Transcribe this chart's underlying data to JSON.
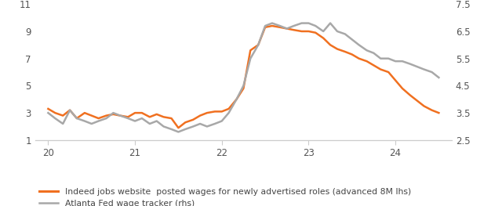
{
  "lhs_ylim": [
    1,
    11
  ],
  "lhs_yticks": [
    1,
    3,
    5,
    7,
    9,
    11
  ],
  "rhs_ylim": [
    2.5,
    7.5
  ],
  "rhs_yticks": [
    2.5,
    3.5,
    4.5,
    5.5,
    6.5,
    7.5
  ],
  "xticks": [
    20,
    21,
    22,
    23,
    24
  ],
  "xlim": [
    19.85,
    24.65
  ],
  "orange_color": "#F07020",
  "gray_color": "#A8A8A8",
  "background_color": "#FFFFFF",
  "legend_orange": "Indeed jobs website  posted wages for newly advertised roles (advanced 8M lhs)",
  "legend_gray": "Atlanta Fed wage tracker (rhs)",
  "indeed_x": [
    20.0,
    20.08,
    20.17,
    20.25,
    20.33,
    20.42,
    20.5,
    20.58,
    20.67,
    20.75,
    20.83,
    20.92,
    21.0,
    21.08,
    21.17,
    21.25,
    21.33,
    21.42,
    21.5,
    21.58,
    21.67,
    21.75,
    21.83,
    21.92,
    22.0,
    22.08,
    22.17,
    22.25,
    22.33,
    22.42,
    22.5,
    22.58,
    22.67,
    22.75,
    22.83,
    22.92,
    23.0,
    23.08,
    23.17,
    23.25,
    23.33,
    23.42,
    23.5,
    23.58,
    23.67,
    23.75,
    23.83,
    23.92,
    24.0,
    24.08,
    24.17,
    24.25,
    24.33,
    24.42,
    24.5
  ],
  "indeed_y": [
    3.3,
    3.0,
    2.8,
    3.2,
    2.6,
    3.0,
    2.8,
    2.6,
    2.8,
    2.9,
    2.8,
    2.7,
    3.0,
    3.0,
    2.7,
    2.9,
    2.7,
    2.6,
    1.9,
    2.3,
    2.5,
    2.8,
    3.0,
    3.1,
    3.1,
    3.3,
    4.0,
    4.8,
    7.6,
    8.0,
    9.3,
    9.4,
    9.3,
    9.2,
    9.1,
    9.0,
    9.0,
    8.9,
    8.5,
    8.0,
    7.7,
    7.5,
    7.3,
    7.0,
    6.8,
    6.5,
    6.2,
    6.0,
    5.4,
    4.8,
    4.3,
    3.9,
    3.5,
    3.2,
    3.0
  ],
  "atlanta_x": [
    20.0,
    20.08,
    20.17,
    20.25,
    20.33,
    20.42,
    20.5,
    20.58,
    20.67,
    20.75,
    20.83,
    20.92,
    21.0,
    21.08,
    21.17,
    21.25,
    21.33,
    21.42,
    21.5,
    21.58,
    21.67,
    21.75,
    21.83,
    21.92,
    22.0,
    22.08,
    22.17,
    22.25,
    22.33,
    22.42,
    22.5,
    22.58,
    22.67,
    22.75,
    22.83,
    22.92,
    23.0,
    23.08,
    23.17,
    23.25,
    23.33,
    23.42,
    23.5,
    23.58,
    23.67,
    23.75,
    23.83,
    23.92,
    24.0,
    24.08,
    24.17,
    24.25,
    24.33,
    24.42,
    24.5
  ],
  "atlanta_y": [
    3.5,
    3.3,
    3.1,
    3.6,
    3.3,
    3.2,
    3.1,
    3.2,
    3.3,
    3.5,
    3.4,
    3.3,
    3.2,
    3.3,
    3.1,
    3.2,
    3.0,
    2.9,
    2.8,
    2.9,
    3.0,
    3.1,
    3.0,
    3.1,
    3.2,
    3.5,
    4.0,
    4.5,
    5.5,
    6.0,
    6.7,
    6.8,
    6.7,
    6.6,
    6.7,
    6.8,
    6.8,
    6.7,
    6.5,
    6.8,
    6.5,
    6.4,
    6.2,
    6.0,
    5.8,
    5.7,
    5.5,
    5.5,
    5.4,
    5.4,
    5.3,
    5.2,
    5.1,
    5.0,
    4.8
  ]
}
